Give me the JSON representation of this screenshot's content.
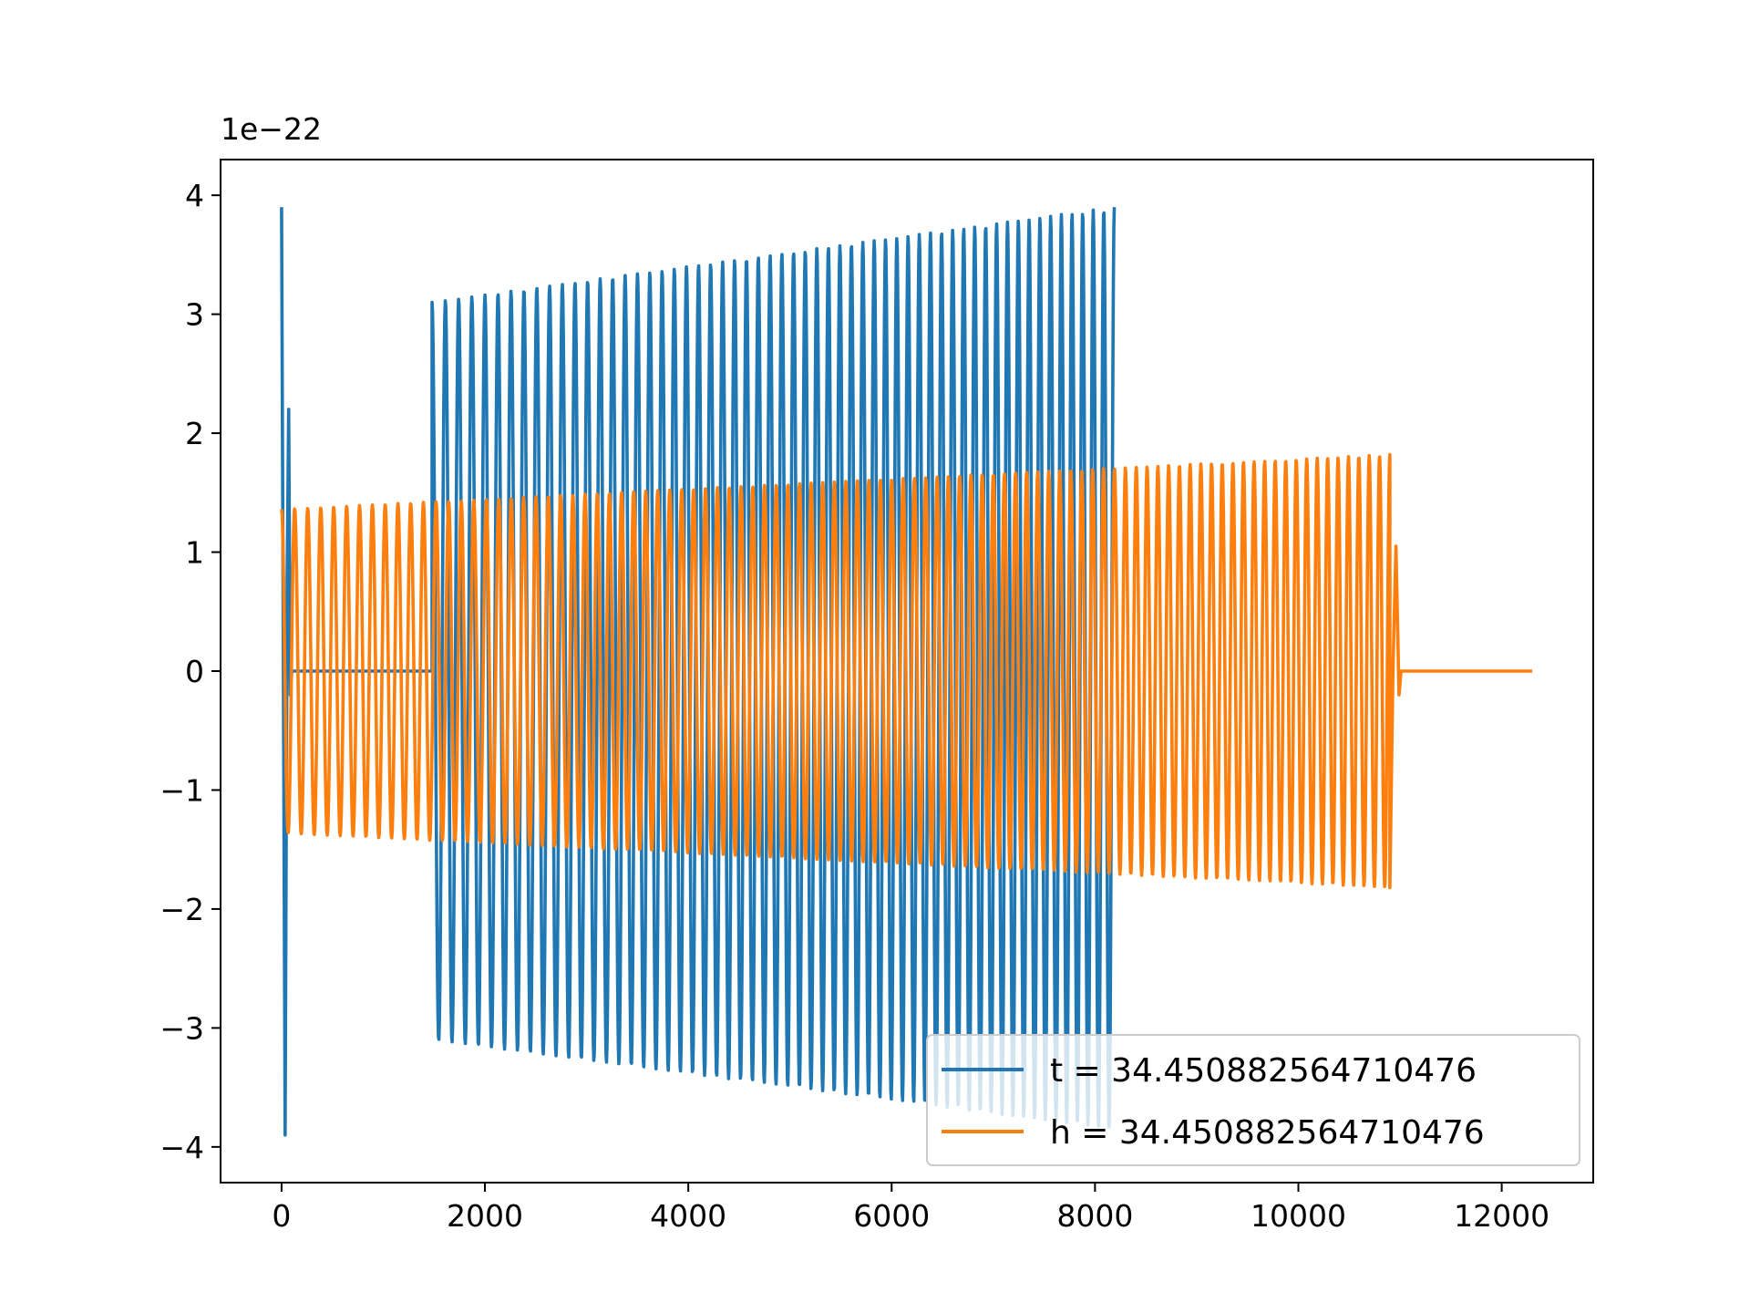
{
  "chart_data": {
    "type": "line",
    "x_offset_label": "",
    "y_offset_label": "1e−22",
    "xlim": [
      -600,
      12900
    ],
    "ylim": [
      -4.3,
      4.3
    ],
    "x_ticks": [
      0,
      2000,
      4000,
      6000,
      8000,
      10000,
      12000
    ],
    "x_tick_labels": [
      "0",
      "2000",
      "4000",
      "6000",
      "8000",
      "10000",
      "12000"
    ],
    "y_ticks": [
      -4,
      -3,
      -2,
      -1,
      0,
      1,
      2,
      3,
      4
    ],
    "y_tick_labels": [
      "−4",
      "−3",
      "−2",
      "−1",
      "0",
      "1",
      "2",
      "3",
      "4"
    ],
    "grid": false,
    "legend_position": "lower right",
    "series": [
      {
        "name": "t = 34.450882564710476",
        "color": "#1f77b4",
        "segments": [
          {
            "kind": "burst",
            "x": [
              0,
              20,
              35,
              55,
              70,
              85,
              100,
              115,
              130
            ],
            "y": [
              3.9,
              -0.5,
              -3.9,
              0.8,
              2.2,
              -0.2,
              0.0,
              0.0,
              0.0
            ]
          },
          {
            "kind": "flat",
            "x_start": 130,
            "x_end": 1480,
            "y": 0.0
          },
          {
            "kind": "chirp",
            "x_start": 1480,
            "x_end": 8190,
            "n_cycles": 58,
            "amp_start": 3.1,
            "amp_end": 3.9,
            "min_start": -3.1,
            "min_end": -3.85
          }
        ]
      },
      {
        "name": "h = 34.450882564710476",
        "color": "#ff7f0e",
        "segments": [
          {
            "kind": "chirp",
            "x_start": 0,
            "x_end": 10900,
            "n_cycles": 96,
            "amp_start": 1.36,
            "amp_end": 1.82,
            "min_start": -1.36,
            "min_end": -1.82
          },
          {
            "kind": "tail",
            "x": [
              10900,
              10930,
              10960,
              10990,
              11010
            ],
            "y": [
              -1.82,
              0.0,
              1.05,
              -0.2,
              0.0
            ]
          },
          {
            "kind": "flat",
            "x_start": 11010,
            "x_end": 12300,
            "y": 0.0
          }
        ]
      }
    ]
  }
}
